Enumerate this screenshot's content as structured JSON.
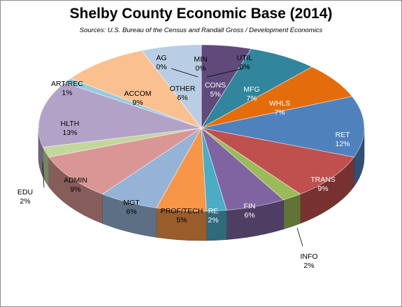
{
  "chart_data": {
    "type": "pie",
    "title": "Shelby County Economic Base (2014)",
    "subtitle": "Sources: U.S. Bureau of the Census and Randall Gross / Development Economics",
    "slices": [
      {
        "label": "CONS",
        "pct_label": "5%",
        "value": 5,
        "color": "#604a7b"
      },
      {
        "label": "MFG",
        "pct_label": "7%",
        "value": 7,
        "color": "#31859c"
      },
      {
        "label": "WHLS",
        "pct_label": "7%",
        "value": 7,
        "color": "#e46c0a"
      },
      {
        "label": "RET",
        "pct_label": "12%",
        "value": 12,
        "color": "#4f81bd"
      },
      {
        "label": "TRANS",
        "pct_label": "9%",
        "value": 9,
        "color": "#c0504d"
      },
      {
        "label": "INFO",
        "pct_label": "2%",
        "value": 2,
        "color": "#9bbb59"
      },
      {
        "label": "FIN",
        "pct_label": "6%",
        "value": 6,
        "color": "#8064a2"
      },
      {
        "label": "RE",
        "pct_label": "2%",
        "value": 2,
        "color": "#4bacc6"
      },
      {
        "label": "PROF/TECH",
        "pct_label": "5%",
        "value": 5,
        "color": "#f79646"
      },
      {
        "label": "MGT",
        "pct_label": "6%",
        "value": 6,
        "color": "#95b3d7"
      },
      {
        "label": "ADMIN",
        "pct_label": "9%",
        "value": 9,
        "color": "#d99694"
      },
      {
        "label": "EDU",
        "pct_label": "2%",
        "value": 2,
        "color": "#c3d69b"
      },
      {
        "label": "HLTH",
        "pct_label": "13%",
        "value": 13,
        "color": "#b2a2c7"
      },
      {
        "label": "ART/REC",
        "pct_label": "1%",
        "value": 1,
        "color": "#93cddd"
      },
      {
        "label": "ACCOM",
        "pct_label": "9%",
        "value": 9,
        "color": "#fac090"
      },
      {
        "label": "OTHER",
        "pct_label": "6%",
        "value": 6,
        "color": "#b9cde5"
      },
      {
        "label": "AG",
        "pct_label": "0%",
        "value": 0,
        "color": "#e6b9b8"
      },
      {
        "label": "MIN",
        "pct_label": "0%",
        "value": 0,
        "color": "#d7e4bd"
      },
      {
        "label": "UTIL",
        "pct_label": "0%",
        "value": 0,
        "color": "#ccc1da"
      }
    ]
  }
}
